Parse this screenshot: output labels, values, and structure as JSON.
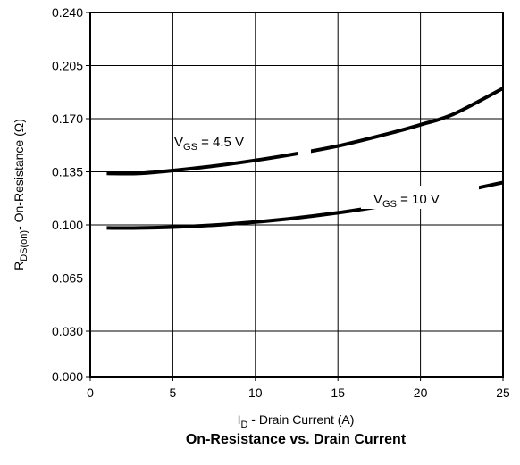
{
  "chart_data": {
    "type": "line",
    "title": "On-Resistance vs. Drain Current",
    "xlabel": {
      "main": "I",
      "sub": "D",
      "rest": " -  Drain Current (A)"
    },
    "ylabel": {
      "main": "R",
      "sub": "DS(on)",
      "rest": "-  On-Resistance (Ω)"
    },
    "xlim": [
      0,
      25
    ],
    "ylim": [
      0.0,
      0.24
    ],
    "xticks": [
      0,
      5,
      10,
      15,
      20,
      25
    ],
    "xtick_labels": [
      "0",
      "5",
      "10",
      "15",
      "20",
      "25"
    ],
    "yticks": [
      0.0,
      0.03,
      0.065,
      0.1,
      0.135,
      0.17,
      0.205,
      0.24
    ],
    "ytick_labels": [
      "0.000",
      "0.030",
      "0.065",
      "0.100",
      "0.135",
      "0.170",
      "0.205",
      "0.240"
    ],
    "grid": true,
    "series": [
      {
        "name": "V_GS = 4.5 V",
        "label": {
          "main": "V",
          "sub": "GS",
          "rest": " = 4.5 V"
        },
        "x": [
          1,
          3,
          6,
          9,
          12,
          15,
          18,
          20,
          22,
          25
        ],
        "y": [
          0.134,
          0.134,
          0.137,
          0.141,
          0.146,
          0.152,
          0.16,
          0.166,
          0.173,
          0.19
        ]
      },
      {
        "name": "V_GS = 10 V",
        "label": {
          "main": "V",
          "sub": "GS",
          "rest": " = 10 V"
        },
        "x": [
          1,
          3,
          6,
          9,
          12,
          15,
          18,
          20,
          22,
          25
        ],
        "y": [
          0.098,
          0.098,
          0.099,
          0.101,
          0.104,
          0.108,
          0.113,
          0.117,
          0.121,
          0.128
        ]
      }
    ]
  }
}
